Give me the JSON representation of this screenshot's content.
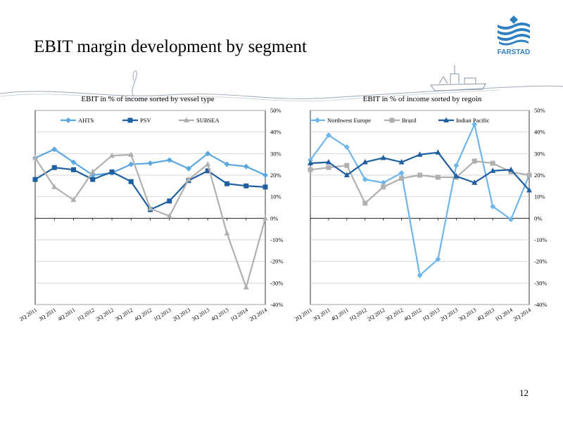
{
  "slide": {
    "title": "EBIT margin development by segment",
    "page_number": "12",
    "logo_text": "FARSTAD",
    "colors": {
      "logo_blue": "#2F7FC1",
      "decor_line": "#9AA9B8"
    }
  },
  "chart_data": [
    {
      "type": "line",
      "title": "EBIT in % of income sorted by vessel type",
      "categories": [
        "2Q 2011",
        "3Q 2011",
        "4Q 2011",
        "1Q 2012",
        "2Q 2012",
        "3Q 2012",
        "4Q 2012",
        "1Q 2013",
        "2Q 2013",
        "3Q 2013",
        "4Q 2013",
        "1Q 2014",
        "2Q 2014"
      ],
      "ylim": [
        -40,
        50
      ],
      "yticks": [
        50,
        40,
        30,
        20,
        10,
        0,
        -10,
        -20,
        -30,
        -40
      ],
      "ytick_labels": [
        "50%",
        "40%",
        "30%",
        "20%",
        "10%",
        "0%",
        "-10%",
        "-20%",
        "-30%",
        "-40%"
      ],
      "grid": true,
      "legend": "top",
      "series": [
        {
          "name": "AHTS",
          "color": "#5BA8E0",
          "marker": "diamond",
          "values": [
            28,
            32,
            26,
            20,
            21,
            25,
            25.5,
            27,
            23,
            30,
            25,
            24,
            20
          ]
        },
        {
          "name": "PSV",
          "color": "#1F5F9F",
          "marker": "square",
          "values": [
            18,
            23.5,
            22.5,
            18,
            21.5,
            17,
            4,
            8,
            17.5,
            22,
            16,
            15,
            14.5
          ]
        },
        {
          "name": "SUBSEA",
          "color": "#B0B0B0",
          "marker": "triangle",
          "values": [
            28,
            14.5,
            8.5,
            21.5,
            29,
            29.5,
            4.5,
            1,
            18,
            25,
            -7,
            -32,
            0
          ]
        }
      ]
    },
    {
      "type": "line",
      "title": "EBIT in % of income sorted by regoin",
      "categories": [
        "2Q 2011",
        "3Q 2011",
        "4Q 2011",
        "1Q 2012",
        "2Q 2012",
        "3Q 2012",
        "4Q 2012",
        "1Q 2013",
        "2Q 2013",
        "3Q 2013",
        "4Q 2013",
        "1Q 2014",
        "2Q 2014"
      ],
      "ylim": [
        -40,
        50
      ],
      "yticks": [
        50,
        40,
        30,
        20,
        10,
        0,
        -10,
        -20,
        -30,
        -40
      ],
      "ytick_labels": [
        "50%",
        "40%",
        "30%",
        "20%",
        "10%",
        "0%",
        "-10%",
        "-20%",
        "-30%",
        "-40%"
      ],
      "grid": true,
      "legend": "top",
      "series": [
        {
          "name": "Northwest Europe",
          "color": "#6FB5EA",
          "marker": "diamond",
          "values": [
            27,
            38.5,
            33,
            18,
            16.5,
            21,
            -26.5,
            -19,
            24.5,
            43.5,
            5.5,
            -0.5,
            20
          ]
        },
        {
          "name": "Brazil",
          "color": "#B0B0B0",
          "marker": "square",
          "values": [
            22.5,
            23.5,
            24.5,
            7,
            14.5,
            18.5,
            20,
            19,
            19,
            26.5,
            25.5,
            21.5,
            20
          ]
        },
        {
          "name": "Indian Pacific",
          "color": "#1F5F9F",
          "marker": "triangle",
          "values": [
            25.5,
            26,
            20,
            26,
            28,
            26,
            29.5,
            30.5,
            19.5,
            16.5,
            22,
            22.5,
            13
          ]
        }
      ]
    }
  ]
}
